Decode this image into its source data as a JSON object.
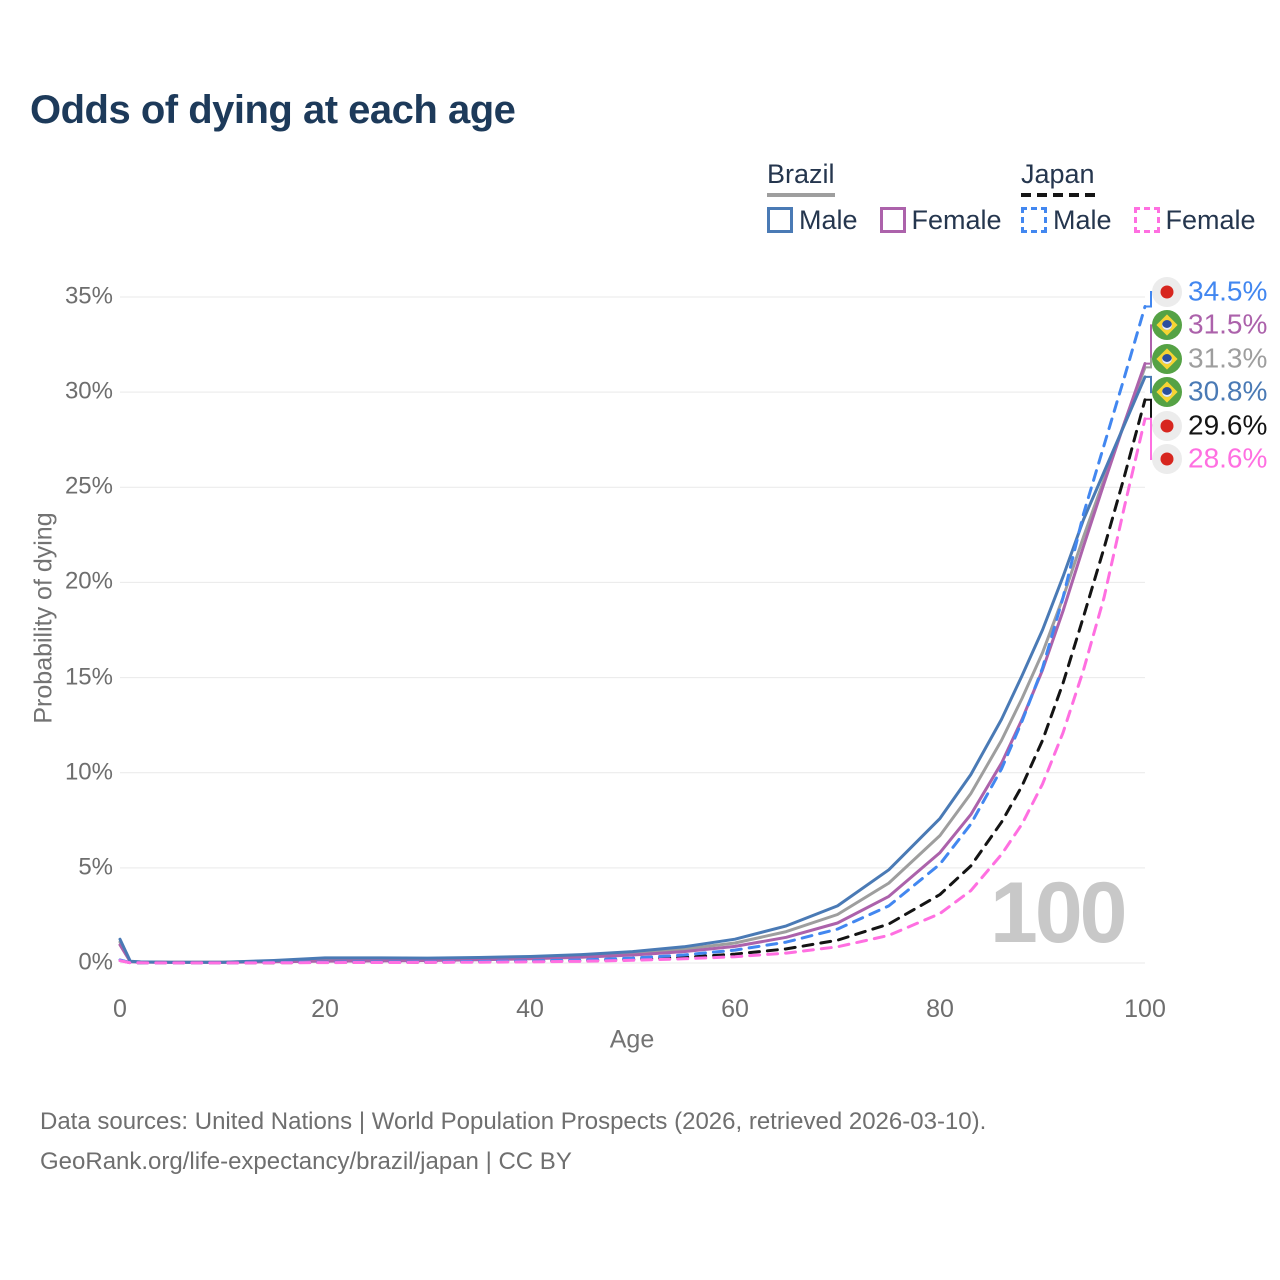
{
  "title": "Odds of dying at each age",
  "legend": {
    "groups": [
      {
        "label": "Brazil",
        "line_style": "solid",
        "line_color": "#9e9e9e",
        "items": [
          {
            "label": "Male",
            "color": "#4a7ab5",
            "dash": false
          },
          {
            "label": "Female",
            "color": "#ac62ab",
            "dash": false
          }
        ]
      },
      {
        "label": "Japan",
        "line_style": "dashed",
        "line_color": "#151515",
        "items": [
          {
            "label": "Male",
            "color": "#4287f0",
            "dash": true
          },
          {
            "label": "Female",
            "color": "#ff6fe1",
            "dash": true
          }
        ]
      }
    ]
  },
  "watermark": "100",
  "footer": {
    "line1": "Data sources: United Nations | World Population Prospects (2026, retrieved 2026-03-10).",
    "line2": "GeoRank.org/life-expectancy/brazil/japan | CC BY"
  },
  "chart_data": {
    "type": "line",
    "title": "Odds of dying at each age",
    "xlabel": "Age",
    "ylabel": "Probability of dying",
    "xlim": [
      0,
      100
    ],
    "ylim": [
      0,
      35
    ],
    "x_ticks": [
      0,
      20,
      40,
      60,
      80,
      100
    ],
    "y_ticks": [
      0,
      5,
      10,
      15,
      20,
      25,
      30,
      35
    ],
    "y_tick_suffix": "%",
    "grid": "horizontal",
    "legend_position": "top-right",
    "ages": [
      0,
      1,
      2,
      5,
      10,
      15,
      20,
      25,
      30,
      35,
      40,
      45,
      50,
      55,
      60,
      65,
      70,
      75,
      80,
      83,
      86,
      88,
      90,
      92,
      94,
      96,
      98,
      100
    ],
    "series": [
      {
        "id": "japan-male",
        "name": "Japan Male",
        "country": "Japan",
        "sex": "Male",
        "color": "#4287f0",
        "dash": true,
        "flag": "japan",
        "z": 5,
        "end_value": 34.5,
        "end_label": "34.5%",
        "values": [
          0.16,
          0.02,
          0.015,
          0.01,
          0.01,
          0.025,
          0.045,
          0.05,
          0.06,
          0.08,
          0.11,
          0.16,
          0.26,
          0.42,
          0.68,
          1.1,
          1.78,
          3.0,
          5.2,
          7.3,
          10.2,
          12.7,
          15.5,
          19.2,
          23.6,
          27.2,
          30.8,
          34.5
        ]
      },
      {
        "id": "brazil-female",
        "name": "Brazil Female",
        "country": "Brazil",
        "sex": "Female",
        "color": "#ac62ab",
        "dash": false,
        "flag": "brazil",
        "z": 2,
        "end_value": 31.5,
        "end_label": "31.5%",
        "values": [
          0.95,
          0.07,
          0.045,
          0.03,
          0.03,
          0.07,
          0.1,
          0.11,
          0.13,
          0.17,
          0.22,
          0.3,
          0.42,
          0.6,
          0.87,
          1.35,
          2.1,
          3.5,
          5.8,
          7.8,
          10.5,
          12.8,
          15.4,
          18.5,
          21.9,
          25.2,
          28.4,
          31.5
        ]
      },
      {
        "id": "brazil-both",
        "name": "Brazil Both sexes",
        "country": "Brazil",
        "sex": "Both",
        "color": "#9e9e9e",
        "dash": false,
        "flag": "brazil",
        "z": 1,
        "end_value": 31.3,
        "end_label": "31.3%",
        "values": [
          1.1,
          0.08,
          0.05,
          0.035,
          0.035,
          0.1,
          0.19,
          0.19,
          0.2,
          0.23,
          0.28,
          0.37,
          0.51,
          0.73,
          1.05,
          1.65,
          2.55,
          4.2,
          6.7,
          8.9,
          11.7,
          13.9,
          16.3,
          19.2,
          22.4,
          25.4,
          28.4,
          31.3
        ]
      },
      {
        "id": "brazil-male",
        "name": "Brazil Male",
        "country": "Brazil",
        "sex": "Male",
        "color": "#4a7ab5",
        "dash": false,
        "flag": "brazil",
        "z": 3,
        "end_value": 30.8,
        "end_label": "30.8%",
        "values": [
          1.25,
          0.09,
          0.06,
          0.04,
          0.04,
          0.13,
          0.27,
          0.27,
          0.26,
          0.29,
          0.34,
          0.44,
          0.6,
          0.85,
          1.25,
          1.95,
          3.0,
          4.9,
          7.6,
          9.9,
          12.8,
          15.1,
          17.5,
          20.3,
          23.3,
          25.8,
          28.3,
          30.8
        ]
      },
      {
        "id": "japan-both",
        "name": "Japan Both sexes",
        "country": "Japan",
        "sex": "Both",
        "color": "#141414",
        "dash": true,
        "flag": "japan",
        "z": 4,
        "end_value": 29.6,
        "end_label": "29.6%",
        "values": [
          0.14,
          0.015,
          0.012,
          0.008,
          0.008,
          0.018,
          0.03,
          0.035,
          0.04,
          0.06,
          0.08,
          0.12,
          0.19,
          0.3,
          0.47,
          0.74,
          1.2,
          2.05,
          3.6,
          5.1,
          7.4,
          9.3,
          11.7,
          14.7,
          18.2,
          21.8,
          25.6,
          29.6
        ]
      },
      {
        "id": "japan-female",
        "name": "Japan Female",
        "country": "Japan",
        "sex": "Female",
        "color": "#ff6fe1",
        "dash": true,
        "flag": "japan",
        "z": 6,
        "end_value": 28.6,
        "end_label": "28.6%",
        "values": [
          0.12,
          0.012,
          0.009,
          0.007,
          0.007,
          0.012,
          0.02,
          0.025,
          0.03,
          0.04,
          0.06,
          0.09,
          0.14,
          0.22,
          0.33,
          0.52,
          0.85,
          1.45,
          2.6,
          3.8,
          5.7,
          7.3,
          9.4,
          12.1,
          15.4,
          19.2,
          24.0,
          28.6
        ]
      }
    ]
  }
}
